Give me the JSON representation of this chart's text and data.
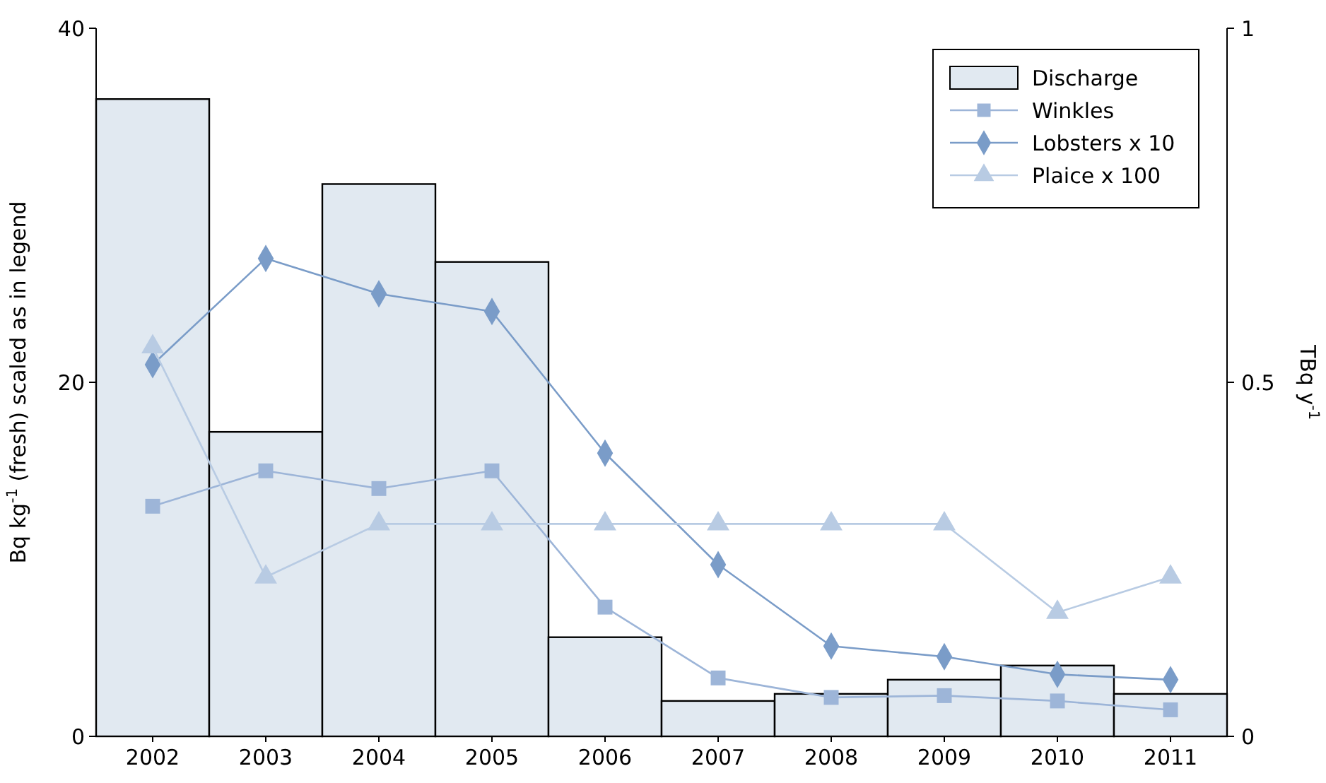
{
  "chart_data": {
    "type": "bar",
    "categories": [
      "2002",
      "2003",
      "2004",
      "2005",
      "2006",
      "2007",
      "2008",
      "2009",
      "2010",
      "2011"
    ],
    "ylabel": "Bq kg$^{-1}$ (fresh) scaled as in legend",
    "y2label": "TBq y$^{-1}$",
    "ylim": [
      0,
      40
    ],
    "yticks": [
      0,
      20,
      40
    ],
    "y2lim": [
      0,
      1
    ],
    "y2ticks": [
      0,
      0.5,
      1
    ],
    "grid": false,
    "legend": "top right",
    "series": [
      {
        "name": "Discharge",
        "axis": "y2",
        "color": "#e1e9f1",
        "values": [
          0.9,
          0.43,
          0.78,
          0.67,
          0.14,
          0.05,
          0.06,
          0.08,
          0.1,
          0.06
        ]
      },
      {
        "name": "Winkles",
        "type": "line",
        "marker": "square",
        "color": "#9db5d8",
        "values": [
          13,
          15,
          14,
          15,
          7.3,
          3.3,
          2.2,
          2.3,
          2,
          1.5
        ]
      },
      {
        "name": "Lobsters x 10",
        "type": "line",
        "marker": "diamond",
        "color": "#7a9cc8",
        "values": [
          21,
          27,
          25,
          24,
          16,
          9.7,
          5.1,
          4.5,
          3.5,
          3.2
        ]
      },
      {
        "name": "Plaice x 100",
        "type": "line",
        "marker": "triangle",
        "color": "#b8cbe3",
        "values": [
          22,
          9,
          12,
          12,
          12,
          12,
          12,
          12,
          7,
          9
        ]
      }
    ]
  }
}
